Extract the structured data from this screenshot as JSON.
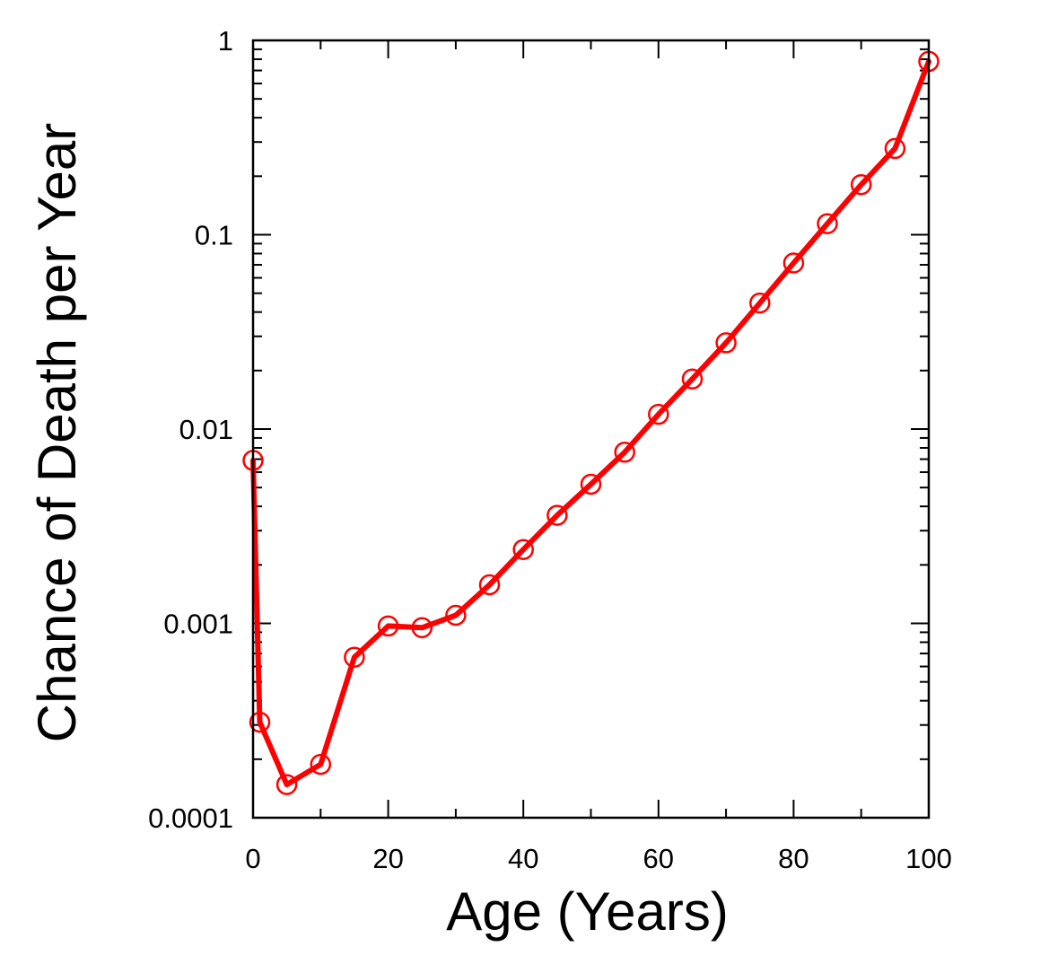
{
  "chart_data": {
    "type": "line",
    "title": "",
    "xlabel": "Age (Years)",
    "ylabel": "Chance of Death per Year",
    "xlim": [
      0,
      100
    ],
    "ylim": [
      0.0001,
      1
    ],
    "yscale": "log",
    "x_ticks": [
      0,
      20,
      40,
      60,
      80,
      100
    ],
    "x_tick_labels": [
      "0",
      "20",
      "40",
      "60",
      "80",
      "100"
    ],
    "y_ticks": [
      0.0001,
      0.001,
      0.01,
      0.1,
      1
    ],
    "y_tick_labels": [
      "0.0001",
      "0.001",
      "0.01",
      "0.1",
      "1"
    ],
    "grid": false,
    "series": [
      {
        "name": "Chance of Death per Year",
        "color": "#ff0000",
        "marker": "open-circle",
        "x": [
          0,
          1,
          5,
          10,
          15,
          20,
          25,
          30,
          35,
          40,
          45,
          50,
          55,
          60,
          65,
          70,
          75,
          80,
          85,
          90,
          95,
          100
        ],
        "values": [
          0.0069,
          0.00031,
          0.000148,
          0.000188,
          0.00067,
          0.00097,
          0.00095,
          0.0011,
          0.00158,
          0.0024,
          0.0036,
          0.0052,
          0.0076,
          0.0119,
          0.0181,
          0.0278,
          0.0445,
          0.0715,
          0.114,
          0.181,
          0.278,
          0.78
        ]
      }
    ]
  }
}
